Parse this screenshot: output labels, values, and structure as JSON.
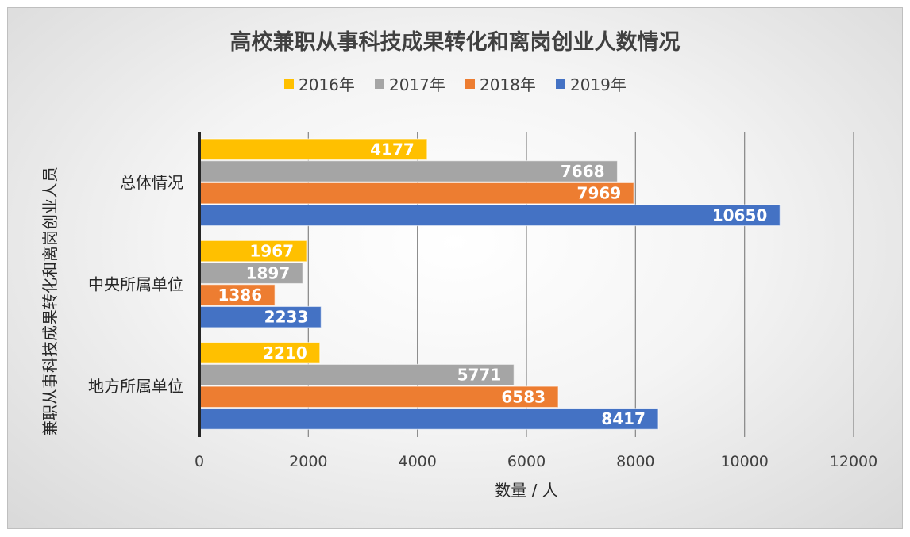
{
  "chart_data": {
    "type": "bar",
    "orientation": "horizontal",
    "title": "高校兼职从事科技成果转化和离岗创业人数情况",
    "xlabel": "数量 / 人",
    "ylabel": "兼职从事科技成果转化和离岗创业人员",
    "categories": [
      "总体情况",
      "中央所属单位",
      "地方所属单位"
    ],
    "series": [
      {
        "name": "2016年",
        "color": "#ffc000",
        "values": [
          4177,
          1967,
          2210
        ]
      },
      {
        "name": "2017年",
        "color": "#a5a5a5",
        "values": [
          7668,
          1897,
          5771
        ]
      },
      {
        "name": "2018年",
        "color": "#ed7d31",
        "values": [
          7969,
          1386,
          6583
        ]
      },
      {
        "name": "2019年",
        "color": "#4472c4",
        "values": [
          10650,
          2233,
          8417
        ]
      }
    ],
    "xlim": [
      0,
      12000
    ],
    "xticks": [
      "0",
      "2000",
      "4000",
      "6000",
      "8000",
      "10000",
      "12000"
    ],
    "grid": "vertical",
    "legend": "top",
    "data_labels": true
  }
}
